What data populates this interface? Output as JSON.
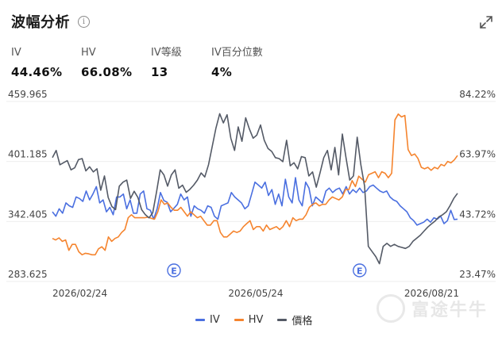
{
  "header": {
    "title": "波幅分析",
    "info_icon": "info-icon",
    "expand_icon": "expand-icon"
  },
  "stats": [
    {
      "label": "IV",
      "value": "44.46%"
    },
    {
      "label": "HV",
      "value": "66.08%"
    },
    {
      "label": "IV等級",
      "value": "13"
    },
    {
      "label": "IV百分位數",
      "value": "4%"
    }
  ],
  "legend": [
    {
      "label": "IV",
      "color": "#4a6fe0"
    },
    {
      "label": "HV",
      "color": "#f5842e"
    },
    {
      "label": "價格",
      "color": "#545a66"
    }
  ],
  "watermark": "富途牛牛",
  "chart_data": {
    "type": "line",
    "left_axis": {
      "ticks": [
        "459.965",
        "401.185",
        "342.405",
        "283.625"
      ],
      "range": [
        283.625,
        459.965
      ]
    },
    "right_axis": {
      "ticks": [
        "84.22%",
        "63.97%",
        "43.72%",
        "23.47%"
      ],
      "range": [
        23.47,
        84.22
      ]
    },
    "x_labels": [
      "2026/02/24",
      "2026/05/24",
      "2026/08/21"
    ],
    "event_markers": [
      "E",
      "E"
    ],
    "event_marker_positions": [
      36,
      91
    ],
    "series": [
      {
        "name": "IV",
        "axis": "right",
        "color": "#4a6fe0",
        "values": [
          47,
          45.5,
          48,
          46.5,
          50,
          49,
          48.5,
          52,
          51.5,
          50.5,
          54,
          51,
          53,
          55.5,
          50,
          51,
          47,
          48.5,
          46,
          52,
          52,
          53,
          48,
          51,
          46.5,
          46.5,
          53,
          54,
          48,
          47.5,
          44.5,
          48,
          53.5,
          50.8,
          50.2,
          47,
          48.2,
          49.5,
          53,
          51,
          52,
          45.5,
          49,
          48,
          47.5,
          46.5,
          49,
          48.5,
          45.5,
          44.5,
          49,
          49.5,
          50,
          53.5,
          52,
          51,
          50,
          48,
          49,
          53,
          57,
          56,
          55,
          57,
          52.5,
          54.5,
          49.5,
          53,
          49,
          58,
          52,
          50,
          58.5,
          51,
          49,
          57,
          55,
          49,
          52,
          51,
          50,
          54,
          55,
          53.5,
          54.5,
          55,
          53,
          55.5,
          53,
          54.5,
          53.5,
          55,
          53.5,
          54,
          55.5,
          56,
          55,
          54,
          53.5,
          54,
          52,
          51,
          50.5,
          49,
          48,
          47,
          45,
          44,
          42.5,
          43,
          43.5,
          44.5,
          43.5,
          45,
          44.5,
          45.5,
          43,
          44,
          47.5,
          44.4,
          44.5
        ]
      },
      {
        "name": "HV",
        "axis": "right",
        "color": "#f5842e",
        "values": [
          38,
          37.5,
          38.2,
          37,
          37.5,
          34,
          36,
          36,
          33.5,
          32.5,
          33,
          32.8,
          32.5,
          32.5,
          34.5,
          35.2,
          34,
          38.5,
          37,
          38,
          38.5,
          40,
          41,
          45,
          46,
          45,
          45,
          45,
          45,
          45.2,
          44.8,
          44.5,
          47,
          51,
          49.5,
          50,
          48.5,
          47.5,
          47.5,
          48.5,
          47,
          45.5,
          47,
          46,
          45,
          45.5,
          44,
          42.5,
          42.5,
          44,
          44,
          40,
          38.5,
          38.5,
          39.5,
          40.5,
          40,
          40.5,
          42,
          43,
          44,
          41,
          42,
          42,
          40.5,
          42.5,
          41,
          41.5,
          42,
          41,
          42,
          44,
          42,
          45,
          44,
          44.5,
          44.5,
          46,
          48.5,
          49.5,
          50,
          49,
          49.5,
          49.5,
          51,
          52,
          51.5,
          51,
          52,
          54.5,
          54.5,
          57.5,
          55.5,
          59,
          58,
          57,
          59.5,
          60,
          60.5,
          58.5,
          60.5,
          60,
          58.5,
          60,
          78,
          80,
          79,
          79.5,
          68,
          66,
          66.5,
          65,
          62,
          61.5,
          62,
          61,
          62,
          61.5,
          63,
          62.5,
          64,
          63.5,
          64.5,
          66
        ]
      },
      {
        "name": "價格",
        "axis": "left",
        "color": "#545a66",
        "values": [
          405,
          412,
          398,
          400,
          402,
          393,
          395,
          403,
          404,
          392,
          396,
          391,
          394,
          373,
          387,
          366,
          357,
          354,
          377,
          381,
          383,
          365,
          372,
          366,
          354,
          349,
          346,
          351,
          371,
          393,
          388,
          377,
          388,
          393,
          375,
          378,
          371,
          374,
          378,
          383,
          390,
          386,
          398,
          416,
          434,
          448,
          439,
          447,
          424,
          412,
          435,
          421,
          444,
          433,
          424,
          427,
          437,
          422,
          414,
          411,
          405,
          404,
          401,
          422,
          397,
          400,
          394,
          406,
          405,
          387,
          391,
          376,
          390,
          405,
          412,
          393,
          415,
          388,
          428,
          405,
          383,
          387,
          425,
          398,
          377,
          318,
          313,
          308,
          301,
          318,
          321,
          318,
          320,
          318,
          317,
          316,
          318,
          323,
          326,
          329,
          333,
          337,
          340,
          343,
          347,
          349,
          352,
          358,
          365,
          370
        ]
      }
    ]
  }
}
